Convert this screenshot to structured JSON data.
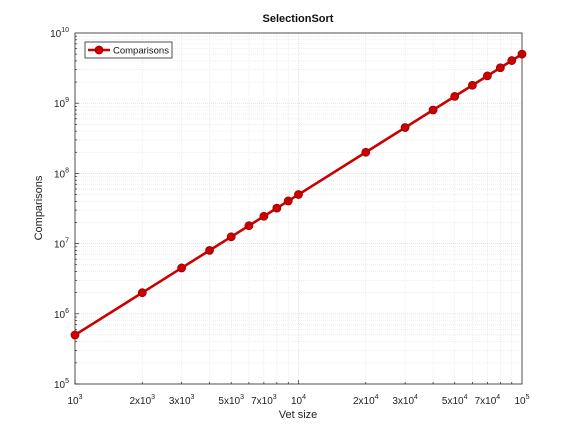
{
  "chart_data": {
    "type": "line",
    "title": "SelectionSort",
    "xlabel": "Vet size",
    "ylabel": "Comparisons",
    "xscale": "log",
    "yscale": "log",
    "xlim": [
      1000,
      100000
    ],
    "ylim": [
      100000,
      10000000000
    ],
    "grid": true,
    "legend_position": "top-left",
    "x_ticks": [
      {
        "value": 1000,
        "base": "10",
        "exp": "3"
      },
      {
        "value": 2000,
        "base": "2x10",
        "exp": "3"
      },
      {
        "value": 3000,
        "base": "3x10",
        "exp": "3"
      },
      {
        "value": 5000,
        "base": "5x10",
        "exp": "3"
      },
      {
        "value": 7000,
        "base": "7x10",
        "exp": "3"
      },
      {
        "value": 10000,
        "base": "10",
        "exp": "4"
      },
      {
        "value": 20000,
        "base": "2x10",
        "exp": "4"
      },
      {
        "value": 30000,
        "base": "3x10",
        "exp": "4"
      },
      {
        "value": 50000,
        "base": "5x10",
        "exp": "4"
      },
      {
        "value": 70000,
        "base": "7x10",
        "exp": "4"
      },
      {
        "value": 100000,
        "base": "10",
        "exp": "5"
      }
    ],
    "y_ticks": [
      {
        "value": 100000,
        "base": "10",
        "exp": "5"
      },
      {
        "value": 1000000,
        "base": "10",
        "exp": "6"
      },
      {
        "value": 10000000,
        "base": "10",
        "exp": "7"
      },
      {
        "value": 100000000,
        "base": "10",
        "exp": "8"
      },
      {
        "value": 1000000000,
        "base": "10",
        "exp": "9"
      },
      {
        "value": 10000000000,
        "base": "10",
        "exp": "10"
      }
    ],
    "series": [
      {
        "name": "Comparisons",
        "color": "#cc0000",
        "x": [
          1000,
          2000,
          3000,
          4000,
          5000,
          6000,
          7000,
          8000,
          9000,
          10000,
          20000,
          30000,
          40000,
          50000,
          60000,
          70000,
          80000,
          90000,
          100000
        ],
        "y": [
          499500,
          1999000,
          4498500,
          7998000,
          12497500,
          17997000,
          24496500,
          31996000,
          40495500,
          49995000,
          199990000,
          449985000,
          799980000,
          1249975000,
          1799970000,
          2449965000,
          3199960000,
          4049955000,
          4999950000
        ]
      }
    ]
  }
}
